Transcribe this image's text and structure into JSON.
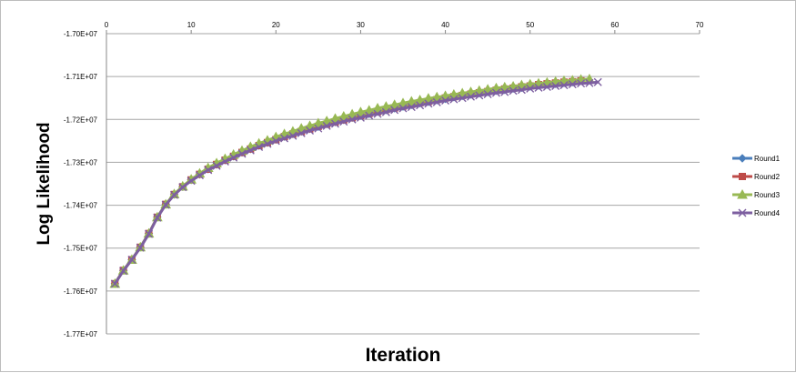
{
  "chart_data": {
    "type": "line",
    "xlabel": "Iteration",
    "ylabel": "Log Likelihood",
    "xlim": [
      0,
      70
    ],
    "ylim": [
      -17700000,
      -17000000
    ],
    "x_ticks": [
      0,
      10,
      20,
      30,
      40,
      50,
      60,
      70
    ],
    "x_tick_labels": [
      "0",
      "10",
      "20",
      "30",
      "40",
      "50",
      "60",
      "70"
    ],
    "y_ticks": [
      -17000000,
      -17100000,
      -17200000,
      -17300000,
      -17400000,
      -17500000,
      -17600000,
      -17700000
    ],
    "y_tick_labels": [
      "-1.70E+07",
      "-1.71E+07",
      "-1.72E+07",
      "-1.73E+07",
      "-1.74E+07",
      "-1.75E+07",
      "-1.76E+07",
      "-1.77E+07"
    ],
    "grid": "horizontal",
    "legend_position": "right",
    "series": [
      {
        "name": "Round1",
        "color": "#4a7ebb",
        "marker": "diamond",
        "x": [
          1,
          2,
          3,
          4,
          5,
          6,
          7,
          8,
          9,
          10,
          11,
          12,
          13,
          14,
          15,
          16,
          17,
          18,
          19,
          20,
          21,
          22,
          23,
          24,
          25,
          26,
          27,
          28,
          29,
          30,
          31,
          32,
          33,
          34,
          35,
          36,
          37,
          38,
          39,
          40,
          41,
          42,
          43,
          44,
          45,
          46,
          47,
          48,
          49,
          50,
          51,
          52,
          53,
          54,
          55
        ],
        "y": [
          -17583000,
          -17552000,
          -17527000,
          -17498000,
          -17466000,
          -17428000,
          -17398000,
          -17375000,
          -17357000,
          -17341000,
          -17328000,
          -17316000,
          -17305000,
          -17295000,
          -17286000,
          -17277000,
          -17269000,
          -17261000,
          -17254000,
          -17247000,
          -17240000,
          -17234000,
          -17228000,
          -17222000,
          -17217000,
          -17211000,
          -17206000,
          -17201000,
          -17196000,
          -17191000,
          -17187000,
          -17182000,
          -17178000,
          -17174000,
          -17170000,
          -17166000,
          -17162000,
          -17159000,
          -17155000,
          -17152000,
          -17148000,
          -17145000,
          -17142000,
          -17139000,
          -17136000,
          -17133000,
          -17131000,
          -17128000,
          -17126000,
          -17123000,
          -17121000,
          -17119000,
          -17117000,
          -17115000,
          -17113000
        ]
      },
      {
        "name": "Round2",
        "color": "#be4b48",
        "marker": "square",
        "x": [
          1,
          2,
          3,
          4,
          5,
          6,
          7,
          8,
          9,
          10,
          11,
          12,
          13,
          14,
          15,
          16,
          17,
          18,
          19,
          20,
          21,
          22,
          23,
          24,
          25,
          26,
          27,
          28,
          29,
          30,
          31,
          32,
          33,
          34,
          35,
          36,
          37,
          38,
          39,
          40,
          41,
          42,
          43,
          44,
          45,
          46,
          47,
          48,
          49,
          50,
          51,
          52,
          53,
          54,
          55,
          56
        ],
        "y": [
          -17583000,
          -17552000,
          -17527000,
          -17498000,
          -17466000,
          -17428000,
          -17398000,
          -17375000,
          -17357000,
          -17341000,
          -17328000,
          -17316000,
          -17305000,
          -17295000,
          -17286000,
          -17277000,
          -17269000,
          -17261000,
          -17254000,
          -17247000,
          -17240000,
          -17234000,
          -17228000,
          -17222000,
          -17216000,
          -17211000,
          -17206000,
          -17201000,
          -17196000,
          -17191000,
          -17186000,
          -17182000,
          -17177000,
          -17173000,
          -17169000,
          -17165000,
          -17161000,
          -17158000,
          -17154000,
          -17150000,
          -17147000,
          -17144000,
          -17141000,
          -17138000,
          -17135000,
          -17132000,
          -17129000,
          -17127000,
          -17124000,
          -17122000,
          -17119000,
          -17117000,
          -17115000,
          -17113000,
          -17112000,
          -17110000
        ]
      },
      {
        "name": "Round3",
        "color": "#98b954",
        "marker": "triangle",
        "x": [
          1,
          2,
          3,
          4,
          5,
          6,
          7,
          8,
          9,
          10,
          11,
          12,
          13,
          14,
          15,
          16,
          17,
          18,
          19,
          20,
          21,
          22,
          23,
          24,
          25,
          26,
          27,
          28,
          29,
          30,
          31,
          32,
          33,
          34,
          35,
          36,
          37,
          38,
          39,
          40,
          41,
          42,
          43,
          44,
          45,
          46,
          47,
          48,
          49,
          50,
          51,
          52,
          53,
          54,
          55,
          56,
          57
        ],
        "y": [
          -17583000,
          -17552000,
          -17527000,
          -17498000,
          -17466000,
          -17428000,
          -17398000,
          -17374000,
          -17356000,
          -17340000,
          -17326000,
          -17313000,
          -17302000,
          -17292000,
          -17282000,
          -17273000,
          -17264000,
          -17256000,
          -17249000,
          -17241000,
          -17234000,
          -17228000,
          -17221000,
          -17215000,
          -17209000,
          -17204000,
          -17198000,
          -17193000,
          -17188000,
          -17183000,
          -17179000,
          -17174000,
          -17170000,
          -17166000,
          -17162000,
          -17158000,
          -17155000,
          -17151000,
          -17148000,
          -17145000,
          -17142000,
          -17139000,
          -17136000,
          -17133000,
          -17130000,
          -17127000,
          -17125000,
          -17123000,
          -17120000,
          -17118000,
          -17116000,
          -17114000,
          -17112000,
          -17110000,
          -17109000,
          -17107000,
          -17106000
        ]
      },
      {
        "name": "Round4",
        "color": "#7d5fa0",
        "marker": "x",
        "x": [
          1,
          2,
          3,
          4,
          5,
          6,
          7,
          8,
          9,
          10,
          11,
          12,
          13,
          14,
          15,
          16,
          17,
          18,
          19,
          20,
          21,
          22,
          23,
          24,
          25,
          26,
          27,
          28,
          29,
          30,
          31,
          32,
          33,
          34,
          35,
          36,
          37,
          38,
          39,
          40,
          41,
          42,
          43,
          44,
          45,
          46,
          47,
          48,
          49,
          50,
          51,
          52,
          53,
          54,
          55,
          56,
          57,
          58
        ],
        "y": [
          -17583000,
          -17553000,
          -17527000,
          -17499000,
          -17467000,
          -17429000,
          -17399000,
          -17376000,
          -17358000,
          -17343000,
          -17330000,
          -17318000,
          -17308000,
          -17298000,
          -17289000,
          -17280000,
          -17272000,
          -17264000,
          -17257000,
          -17250000,
          -17244000,
          -17238000,
          -17232000,
          -17226000,
          -17221000,
          -17215000,
          -17210000,
          -17205000,
          -17200000,
          -17196000,
          -17191000,
          -17187000,
          -17183000,
          -17178000,
          -17174000,
          -17171000,
          -17167000,
          -17163000,
          -17160000,
          -17156000,
          -17153000,
          -17150000,
          -17147000,
          -17144000,
          -17141000,
          -17138000,
          -17136000,
          -17133000,
          -17131000,
          -17128000,
          -17126000,
          -17124000,
          -17122000,
          -17120000,
          -17118000,
          -17116000,
          -17115000,
          -17113000
        ]
      }
    ]
  }
}
